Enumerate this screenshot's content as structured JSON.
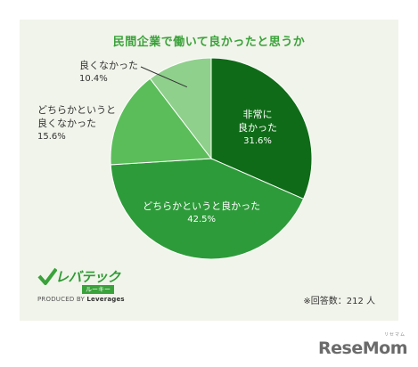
{
  "chart_data": {
    "type": "pie",
    "title": "民間企業で働いて良かったと思うか",
    "slices": [
      {
        "label_lines": [
          "非常に",
          "良かった"
        ],
        "value": 31.6,
        "value_text": "31.6%",
        "color": "#0f6b17"
      },
      {
        "label_lines": [
          "どちらかというと良かった"
        ],
        "value": 42.5,
        "value_text": "42.5%",
        "color": "#2e9b3a"
      },
      {
        "label_lines": [
          "どちらかというと",
          "良くなかった"
        ],
        "value": 15.6,
        "value_text": "15.6%",
        "color": "#5bbd5a"
      },
      {
        "label_lines": [
          "良くなかった"
        ],
        "value": 10.4,
        "value_text": "10.4%",
        "color": "#8fd08c"
      }
    ],
    "start_angle_deg": 0,
    "direction": "clockwise"
  },
  "note": "※回答数：212 人",
  "logo": {
    "name": "レバテック",
    "sub": "ルーキー",
    "produced_prefix": "PRODUCED BY",
    "produced_brand": "Leverages",
    "colors": {
      "brand": "#3aa23a"
    }
  },
  "watermark": {
    "text": "ReseMom",
    "kana": "リセマム"
  }
}
